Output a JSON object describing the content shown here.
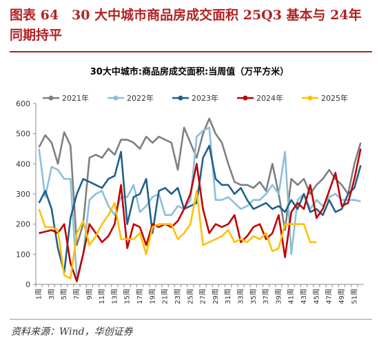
{
  "header": {
    "title": "图表 64　30 大中城市商品房成交面积 25Q3 基本与 24年同期持平"
  },
  "chart_data": {
    "type": "line",
    "title": "30大中城市:商品房成交面积:当周值（万平方米）",
    "categories": [
      "1周",
      null,
      "3周",
      null,
      "5周",
      null,
      "7周",
      null,
      "9周",
      null,
      "11周",
      null,
      "13周",
      null,
      "15周",
      null,
      "17周",
      null,
      "19周",
      null,
      "21周",
      null,
      "23周",
      null,
      "25周",
      null,
      "27周",
      null,
      "29周",
      null,
      "31周",
      null,
      "33周",
      null,
      "35周",
      null,
      "37周",
      null,
      "39周",
      null,
      "41周",
      null,
      "43周",
      null,
      "45周",
      null,
      "47周",
      null,
      "49周",
      null,
      "51周",
      null
    ],
    "series": [
      {
        "name": "2021年",
        "color": "#7f7f7f",
        "values": [
          455,
          495,
          470,
          400,
          505,
          460,
          130,
          200,
          420,
          430,
          420,
          450,
          430,
          480,
          480,
          470,
          450,
          490,
          470,
          490,
          480,
          470,
          380,
          520,
          470,
          420,
          500,
          550,
          500,
          470,
          400,
          340,
          330,
          330,
          320,
          340,
          310,
          400,
          300,
          180,
          350,
          330,
          350,
          300,
          330,
          350,
          380,
          350,
          330,
          300,
          400,
          470
        ]
      },
      {
        "name": "2022年",
        "color": "#8cbfd9",
        "values": [
          450,
          290,
          390,
          380,
          350,
          350,
          20,
          100,
          280,
          300,
          310,
          260,
          230,
          290,
          290,
          330,
          240,
          260,
          290,
          300,
          230,
          230,
          260,
          250,
          280,
          490,
          510,
          520,
          280,
          280,
          290,
          270,
          250,
          260,
          280,
          280,
          300,
          330,
          300,
          440,
          100,
          280,
          300,
          250,
          280,
          260,
          290,
          300,
          280,
          280,
          280,
          275
        ]
      },
      {
        "name": "2023年",
        "color": "#1f5f8b",
        "values": [
          270,
          310,
          250,
          120,
          40,
          220,
          300,
          350,
          340,
          330,
          320,
          350,
          360,
          440,
          200,
          290,
          300,
          350,
          170,
          310,
          320,
          300,
          320,
          250,
          260,
          270,
          420,
          460,
          350,
          330,
          330,
          300,
          320,
          280,
          250,
          260,
          270,
          250,
          260,
          240,
          280,
          250,
          300,
          240,
          250,
          230,
          280,
          240,
          250,
          300,
          320,
          395
        ]
      },
      {
        "name": "2024年",
        "color": "#c00000",
        "values": [
          170,
          175,
          180,
          170,
          200,
          70,
          10,
          100,
          200,
          170,
          140,
          160,
          200,
          330,
          120,
          200,
          190,
          130,
          200,
          190,
          200,
          190,
          210,
          250,
          300,
          400,
          250,
          170,
          200,
          190,
          200,
          230,
          140,
          160,
          190,
          200,
          150,
          170,
          230,
          90,
          240,
          270,
          250,
          330,
          220,
          250,
          310,
          370,
          260,
          270,
          350,
          450
        ]
      },
      {
        "name": "2025年",
        "color": "#ffc000",
        "values": [
          250,
          190,
          190,
          180,
          30,
          20,
          170,
          210,
          130,
          160,
          200,
          230,
          270,
          150,
          150,
          150,
          170,
          100,
          190,
          200,
          200,
          200,
          150,
          170,
          200,
          310,
          130,
          140,
          150,
          160,
          180,
          140,
          150,
          140,
          160,
          150,
          170,
          110,
          120,
          200,
          200,
          200,
          200,
          140,
          140,
          null,
          null,
          null,
          null,
          null,
          null,
          null
        ]
      }
    ],
    "ylim": [
      0,
      600
    ],
    "yticks": [
      0,
      100,
      200,
      300,
      400,
      500,
      600
    ],
    "grid": false
  },
  "source": "资料来源：Wind，华创证券"
}
